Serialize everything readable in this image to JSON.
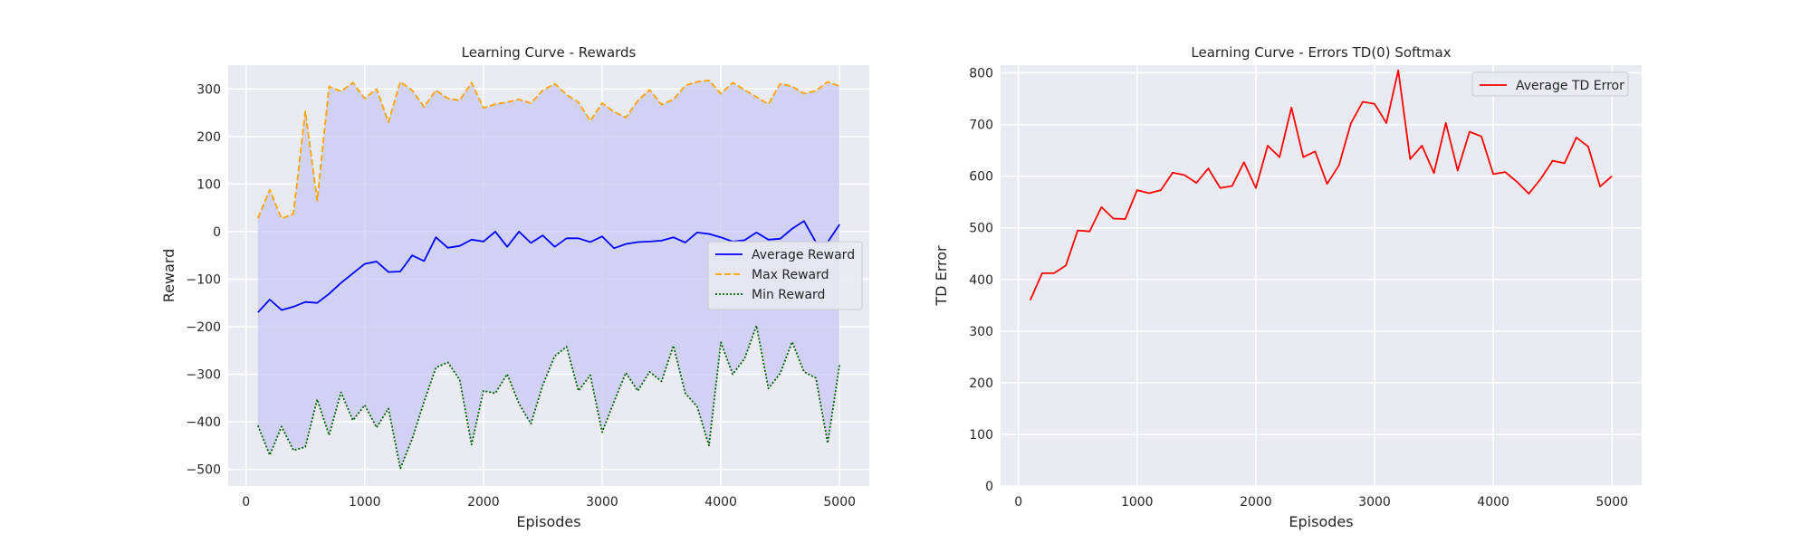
{
  "chart_data": [
    {
      "type": "line",
      "title": "Learning Curve - Rewards",
      "xlabel": "Episodes",
      "ylabel": "Reward",
      "xlim": [
        -150,
        5250
      ],
      "ylim": [
        -535,
        350
      ],
      "xticks": [
        0,
        1000,
        2000,
        3000,
        4000,
        5000
      ],
      "yticks": [
        -500,
        -400,
        -300,
        -200,
        -100,
        0,
        100,
        200,
        300
      ],
      "grid": true,
      "legend_position": "center-right",
      "fill_between": {
        "upper": "Max Reward",
        "lower": "Min Reward",
        "color": "#c8c8f3"
      },
      "x": [
        100,
        200,
        300,
        400,
        500,
        600,
        700,
        800,
        900,
        1000,
        1100,
        1200,
        1300,
        1400,
        1500,
        1600,
        1700,
        1800,
        1900,
        2000,
        2100,
        2200,
        2300,
        2400,
        2500,
        2600,
        2700,
        2800,
        2900,
        3000,
        3100,
        3200,
        3300,
        3400,
        3500,
        3600,
        3700,
        3800,
        3900,
        4000,
        4100,
        4200,
        4300,
        4400,
        4500,
        4600,
        4700,
        4800,
        4900,
        5000
      ],
      "series": [
        {
          "name": "Average Reward",
          "color": "#0000ff",
          "dash": "solid",
          "values": [
            -170,
            -143,
            -165,
            -158,
            -148,
            -150,
            -131,
            -108,
            -88,
            -68,
            -63,
            -85,
            -84,
            -50,
            -62,
            -12,
            -34,
            -30,
            -17,
            -21,
            0,
            -32,
            0,
            -24,
            -8,
            -32,
            -14,
            -14,
            -22,
            -10,
            -35,
            -26,
            -22,
            -21,
            -19,
            -12,
            -23,
            -2,
            -5,
            -12,
            -21,
            -18,
            -2,
            -17,
            -15,
            6,
            22,
            -22,
            -22,
            15
          ]
        },
        {
          "name": "Max Reward",
          "color": "#ffa500",
          "dash": "dashed",
          "values": [
            28,
            88,
            27,
            38,
            253,
            65,
            305,
            295,
            313,
            280,
            300,
            230,
            315,
            297,
            262,
            297,
            280,
            276,
            313,
            260,
            268,
            272,
            278,
            270,
            297,
            311,
            288,
            272,
            233,
            270,
            252,
            240,
            275,
            298,
            267,
            278,
            307,
            315,
            318,
            290,
            313,
            298,
            283,
            268,
            311,
            305,
            290,
            296,
            315,
            306
          ]
        },
        {
          "name": "Min Reward",
          "color": "#006400",
          "dash": "dotted",
          "values": [
            -408,
            -470,
            -410,
            -460,
            -453,
            -353,
            -428,
            -338,
            -397,
            -365,
            -412,
            -372,
            -498,
            -436,
            -358,
            -286,
            -275,
            -312,
            -448,
            -335,
            -340,
            -300,
            -362,
            -404,
            -323,
            -262,
            -242,
            -335,
            -302,
            -422,
            -358,
            -297,
            -335,
            -295,
            -315,
            -240,
            -340,
            -368,
            -450,
            -233,
            -300,
            -267,
            -198,
            -330,
            -298,
            -232,
            -295,
            -308,
            -445,
            -280
          ]
        }
      ]
    },
    {
      "type": "line",
      "title": "Learning Curve - Errors TD(0) Softmax",
      "xlabel": "Episodes",
      "ylabel": "TD Error",
      "xlim": [
        -150,
        5250
      ],
      "ylim": [
        0,
        815
      ],
      "xticks": [
        0,
        1000,
        2000,
        3000,
        4000,
        5000
      ],
      "yticks": [
        0,
        100,
        200,
        300,
        400,
        500,
        600,
        700,
        800
      ],
      "grid": true,
      "legend_position": "top-right",
      "x": [
        100,
        200,
        300,
        400,
        500,
        600,
        700,
        800,
        900,
        1000,
        1100,
        1200,
        1300,
        1400,
        1500,
        1600,
        1700,
        1800,
        1900,
        2000,
        2100,
        2200,
        2300,
        2400,
        2500,
        2600,
        2700,
        2800,
        2900,
        3000,
        3100,
        3200,
        3300,
        3400,
        3500,
        3600,
        3700,
        3800,
        3900,
        4000,
        4100,
        4200,
        4300,
        4400,
        4500,
        4600,
        4700,
        4800,
        4900,
        5000
      ],
      "series": [
        {
          "name": "Average TD Error",
          "color": "#ff0000",
          "dash": "solid",
          "values": [
            360,
            412,
            412,
            427,
            495,
            493,
            540,
            518,
            517,
            573,
            567,
            573,
            607,
            602,
            587,
            615,
            577,
            581,
            627,
            577,
            659,
            637,
            733,
            637,
            648,
            585,
            621,
            702,
            744,
            740,
            703,
            805,
            633,
            659,
            606,
            703,
            611,
            686,
            677,
            604,
            608,
            589,
            566,
            595,
            630,
            625,
            675,
            657,
            580,
            600
          ]
        }
      ]
    }
  ]
}
